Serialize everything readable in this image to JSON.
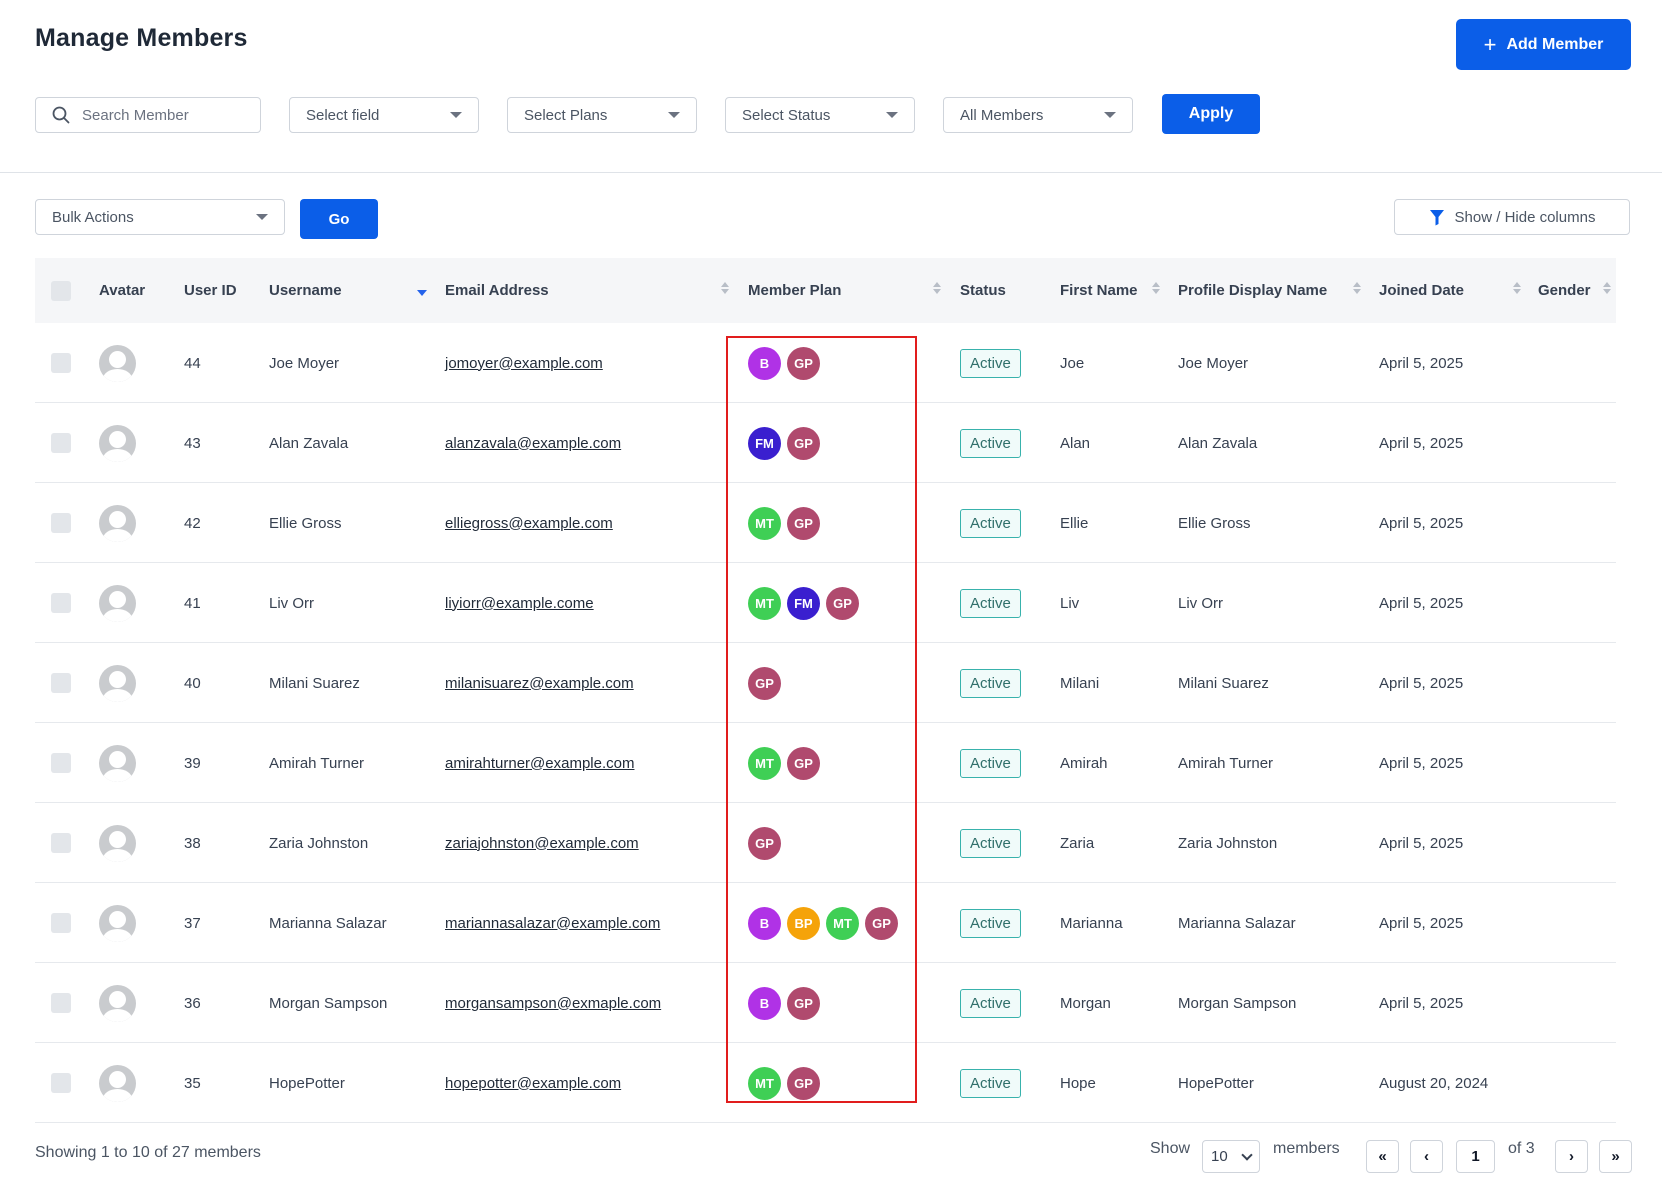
{
  "header": {
    "title": "Manage Members",
    "add_button_label": "Add Member"
  },
  "filters": {
    "search_placeholder": "Search Member",
    "field_select": "Select field",
    "plans_select": "Select Plans",
    "status_select": "Select Status",
    "members_select": "All Members",
    "apply_label": "Apply"
  },
  "bulk": {
    "select_label": "Bulk Actions",
    "go_label": "Go",
    "columns_label": "Show / Hide columns"
  },
  "table": {
    "columns": [
      "Avatar",
      "User ID",
      "Username",
      "Email Address",
      "Member Plan",
      "Status",
      "First Name",
      "Profile Display Name",
      "Joined Date",
      "Gender"
    ],
    "plan_colors": {
      "B": "#b032e6",
      "GP": "#b04a6e",
      "FM": "#3a1fcf",
      "MT": "#3fcf55",
      "BP": "#f5a30a"
    },
    "rows": [
      {
        "id": "44",
        "username": "Joe Moyer",
        "email": "jomoyer@example.com",
        "plans": [
          "B",
          "GP"
        ],
        "status": "Active",
        "first_name": "Joe",
        "display_name": "Joe Moyer",
        "joined": "April 5, 2025",
        "gender": ""
      },
      {
        "id": "43",
        "username": "Alan Zavala",
        "email": "alanzavala@example.com",
        "plans": [
          "FM",
          "GP"
        ],
        "status": "Active",
        "first_name": "Alan",
        "display_name": "Alan Zavala",
        "joined": "April 5, 2025",
        "gender": ""
      },
      {
        "id": "42",
        "username": "Ellie Gross",
        "email": "elliegross@example.com",
        "plans": [
          "MT",
          "GP"
        ],
        "status": "Active",
        "first_name": "Ellie",
        "display_name": "Ellie Gross",
        "joined": "April 5, 2025",
        "gender": ""
      },
      {
        "id": "41",
        "username": "Liv Orr",
        "email": "liyiorr@example.come",
        "plans": [
          "MT",
          "FM",
          "GP"
        ],
        "status": "Active",
        "first_name": "Liv",
        "display_name": "Liv Orr",
        "joined": "April 5, 2025",
        "gender": ""
      },
      {
        "id": "40",
        "username": "Milani Suarez",
        "email": "milanisuarez@example.com",
        "plans": [
          "GP"
        ],
        "status": "Active",
        "first_name": "Milani",
        "display_name": "Milani Suarez",
        "joined": "April 5, 2025",
        "gender": ""
      },
      {
        "id": "39",
        "username": "Amirah Turner",
        "email": "amirahturner@example.com",
        "plans": [
          "MT",
          "GP"
        ],
        "status": "Active",
        "first_name": "Amirah",
        "display_name": "Amirah Turner",
        "joined": "April 5, 2025",
        "gender": ""
      },
      {
        "id": "38",
        "username": "Zaria Johnston",
        "email": "zariajohnston@example.com",
        "plans": [
          "GP"
        ],
        "status": "Active",
        "first_name": "Zaria",
        "display_name": "Zaria Johnston",
        "joined": "April 5, 2025",
        "gender": ""
      },
      {
        "id": "37",
        "username": "Marianna Salazar",
        "email": "mariannasalazar@example.com",
        "plans": [
          "B",
          "BP",
          "MT",
          "GP"
        ],
        "status": "Active",
        "first_name": "Marianna",
        "display_name": "Marianna Salazar",
        "joined": "April 5, 2025",
        "gender": ""
      },
      {
        "id": "36",
        "username": "Morgan Sampson",
        "email": "morgansampson@exmaple.com",
        "plans": [
          "B",
          "GP"
        ],
        "status": "Active",
        "first_name": "Morgan",
        "display_name": "Morgan Sampson",
        "joined": "April 5, 2025",
        "gender": ""
      },
      {
        "id": "35",
        "username": "HopePotter",
        "email": "hopepotter@example.com",
        "plans": [
          "MT",
          "GP"
        ],
        "status": "Active",
        "first_name": "Hope",
        "display_name": "HopePotter",
        "joined": "August 20, 2024",
        "gender": ""
      }
    ]
  },
  "footer": {
    "showing_text": "Showing 1 to 10 of 27 members",
    "show_label": "Show",
    "per_page": "10",
    "members_label": "members",
    "current_page": "1",
    "of_pages": "of 3",
    "first_symbol": "«",
    "prev_symbol": "‹",
    "next_symbol": "›",
    "last_symbol": "»"
  },
  "colors": {
    "accent": "#0b5ee8",
    "highlight_border": "#e11d1d",
    "status_border": "#38b2ac"
  }
}
